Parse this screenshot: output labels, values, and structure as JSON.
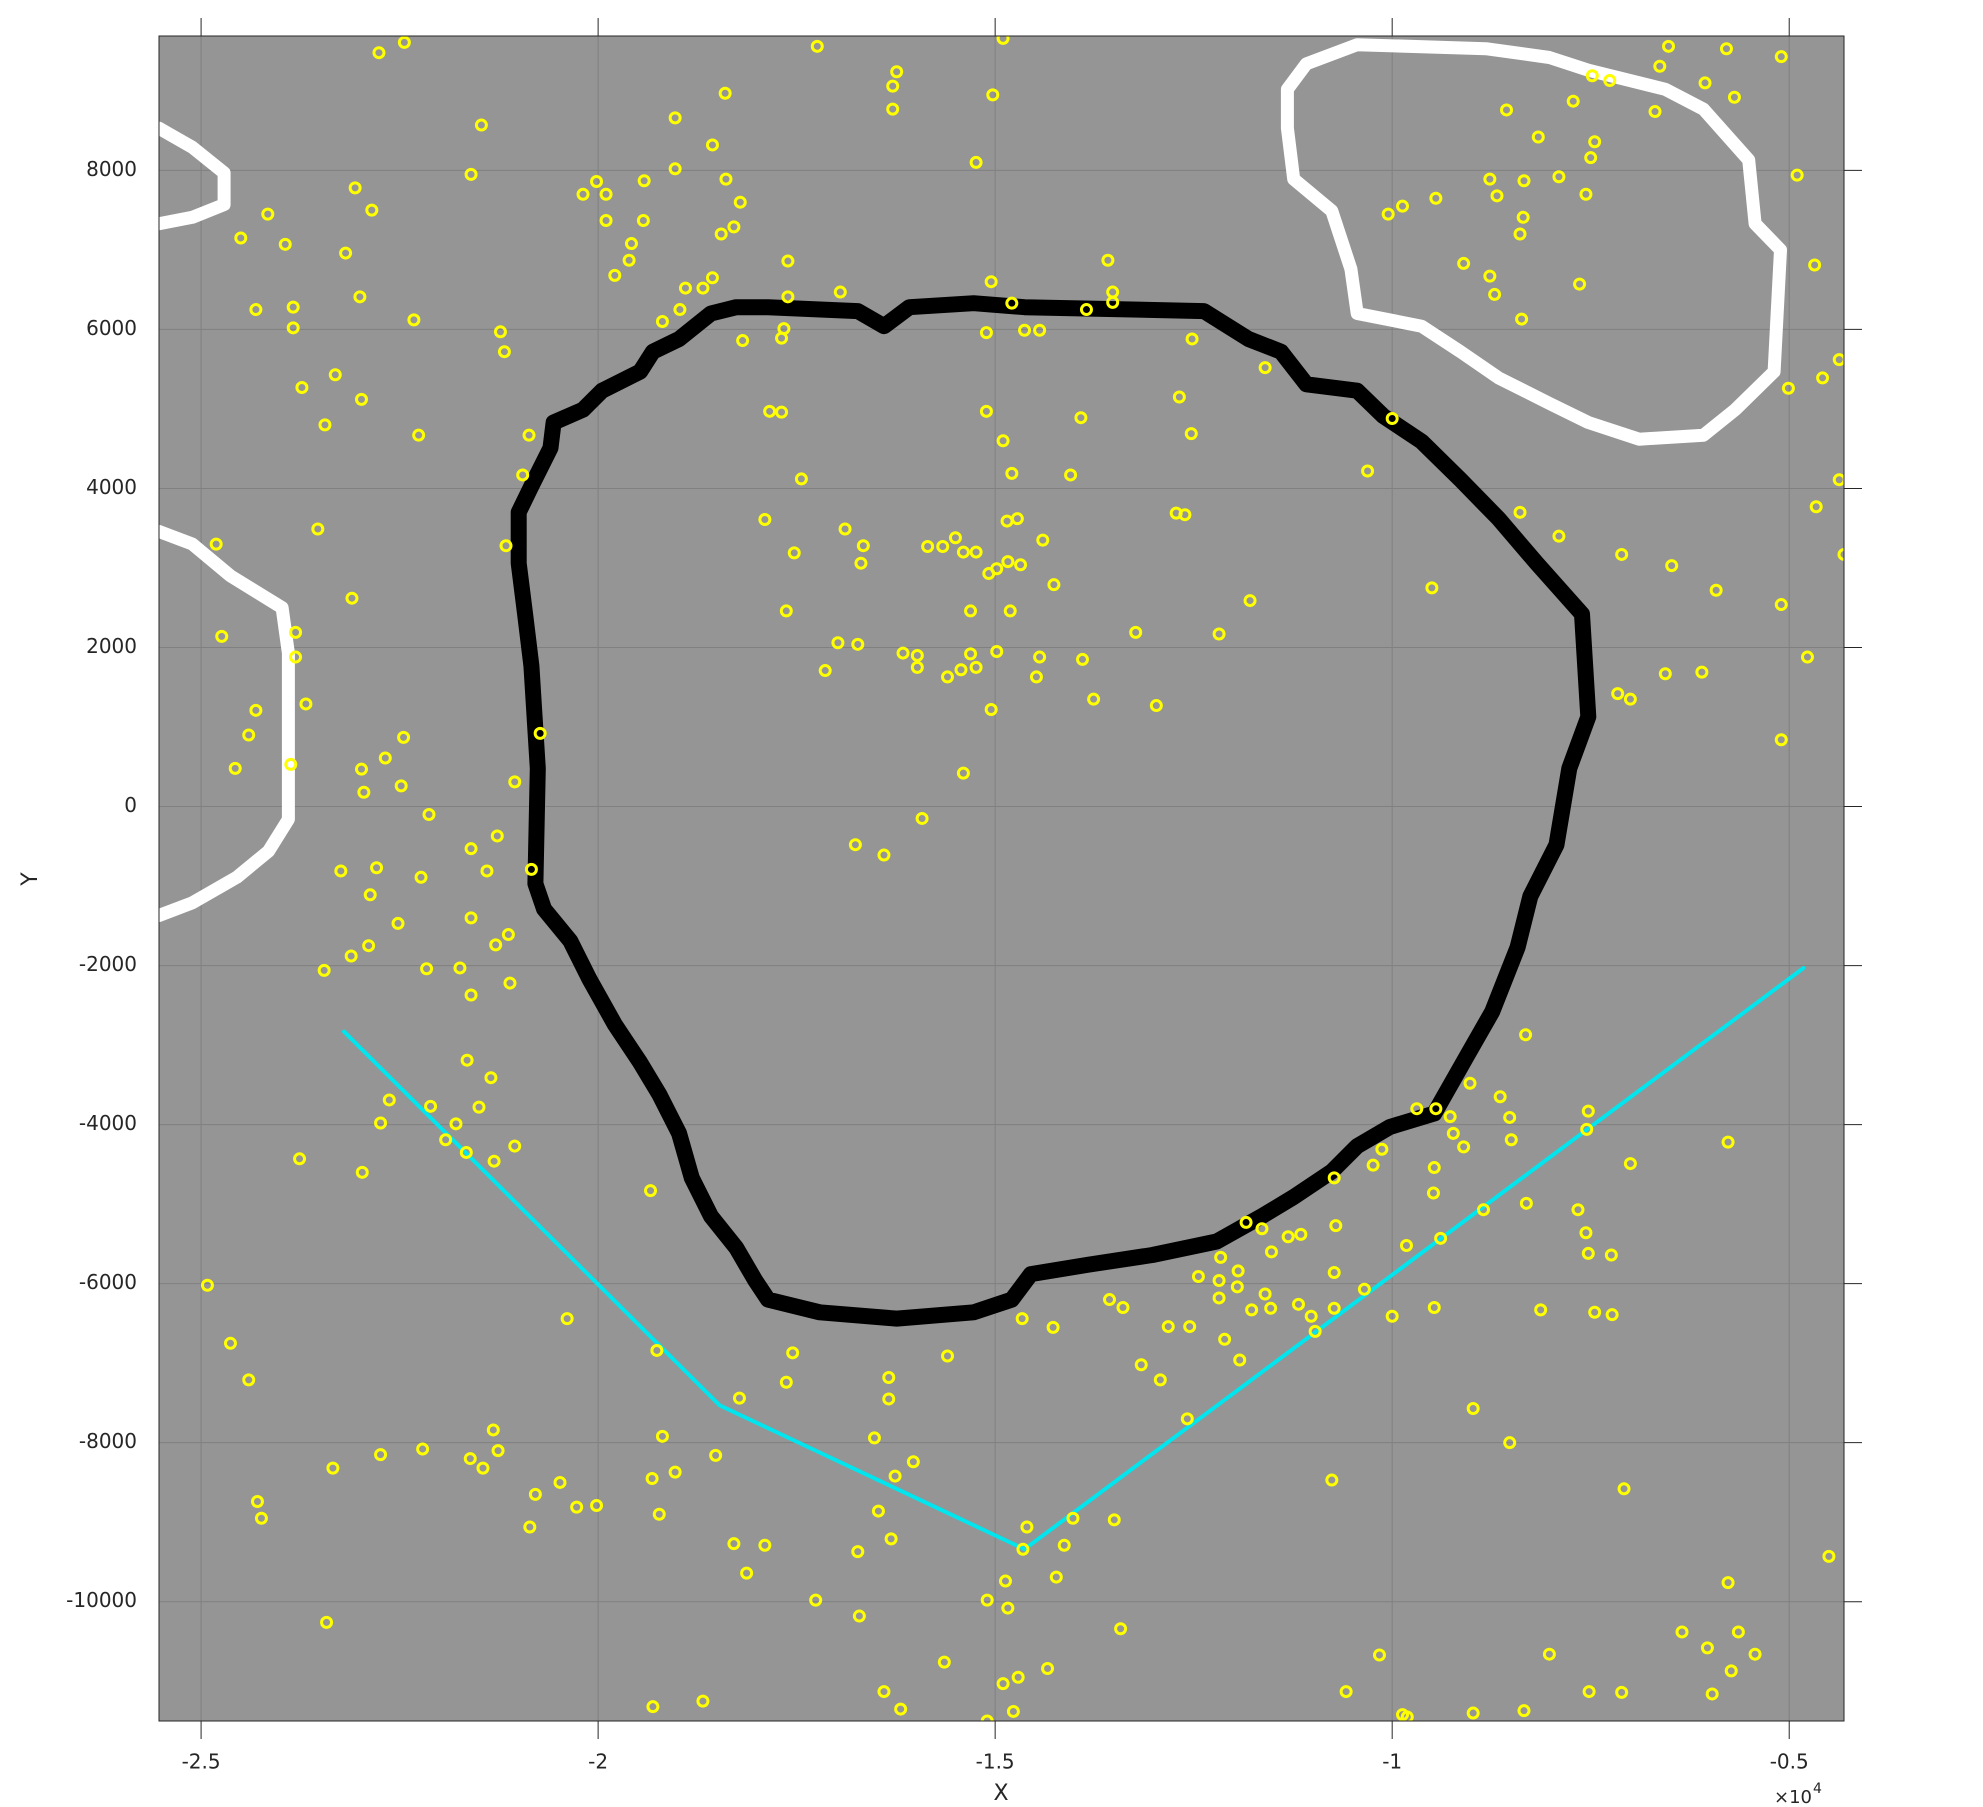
{
  "chart_data": {
    "type": "scatter",
    "xlabel": "X",
    "ylabel": "Y",
    "x_multiplier": {
      "base": "×10",
      "exponent": "4"
    },
    "xlim": [
      -25530,
      -4310
    ],
    "ylim": [
      -11500,
      9690
    ],
    "xticks": [
      {
        "value": -25000,
        "label": "-2.5"
      },
      {
        "value": -20000,
        "label": "-2"
      },
      {
        "value": -15000,
        "label": "-1.5"
      },
      {
        "value": -10000,
        "label": "-1"
      },
      {
        "value": -5000,
        "label": "-0.5"
      }
    ],
    "yticks": [
      8000,
      6000,
      4000,
      2000,
      0,
      -2000,
      -4000,
      -6000,
      -8000,
      -10000
    ],
    "grid": true,
    "background": "#959595",
    "series": [
      {
        "mode": "lines",
        "color": "#ffffff",
        "line_width": 13,
        "x": [
          -25530,
          -25110,
          -24710,
          -24710,
          -25110,
          -25530
        ],
        "y": [
          8530,
          8290,
          7970,
          7570,
          7410,
          7330
        ]
      },
      {
        "mode": "lines",
        "color": "#ffffff",
        "line_width": 13,
        "x": [
          -25530,
          -25110,
          -24630,
          -23980,
          -23900,
          -23900,
          -24150,
          -24550,
          -25110,
          -25530
        ],
        "y": [
          3460,
          3300,
          2900,
          2500,
          1930,
          -160,
          -560,
          -890,
          -1210,
          -1370
        ]
      },
      {
        "mode": "lines",
        "color": "#ffffff",
        "line_width": 13,
        "x": [
          -11320,
          -11080,
          -10440,
          -8820,
          -8020,
          -7530,
          -6560,
          -6080,
          -5510,
          -5430,
          -5110,
          -5190,
          -5680,
          -6080,
          -6890,
          -7530,
          -8020,
          -8660,
          -9140,
          -9630,
          -10440,
          -10520,
          -10760,
          -11240,
          -11320,
          -11320
        ],
        "y": [
          9020,
          9340,
          9580,
          9530,
          9420,
          9260,
          9020,
          8770,
          8130,
          7330,
          7000,
          5470,
          4990,
          4670,
          4620,
          4830,
          5070,
          5390,
          5720,
          6040,
          6200,
          6760,
          7490,
          7890,
          8530,
          9020
        ]
      },
      {
        "mode": "lines",
        "color": "#000000",
        "line_width": 16,
        "x": [
          -21000,
          -20840,
          -20600,
          -20560,
          -20190,
          -19950,
          -19470,
          -19310,
          -18980,
          -18580,
          -18260,
          -17860,
          -16730,
          -16400,
          -16080,
          -15270,
          -14630,
          -12370,
          -11810,
          -11400,
          -11080,
          -10440,
          -10110,
          -9630,
          -9140,
          -8660,
          -8180,
          -7610,
          -7530,
          -7770,
          -7930,
          -8260,
          -8420,
          -8740,
          -9060,
          -9470,
          -10030,
          -10440,
          -10760,
          -11240,
          -11640,
          -12210,
          -13020,
          -13820,
          -14550,
          -14790,
          -15270,
          -16240,
          -17210,
          -17860,
          -18020,
          -18260,
          -18580,
          -18820,
          -18980,
          -19230,
          -19470,
          -19790,
          -20110,
          -20350,
          -20680,
          -20790,
          -20760,
          -20840,
          -20920,
          -21000,
          -21000
        ],
        "y": [
          3700,
          4030,
          4510,
          4830,
          4990,
          5230,
          5470,
          5720,
          5880,
          6200,
          6280,
          6280,
          6230,
          6040,
          6280,
          6330,
          6280,
          6230,
          5880,
          5720,
          5310,
          5230,
          4910,
          4590,
          4110,
          3620,
          3060,
          2420,
          1130,
          480,
          -480,
          -1130,
          -1770,
          -2580,
          -3140,
          -3860,
          -4030,
          -4270,
          -4590,
          -4910,
          -5150,
          -5470,
          -5640,
          -5760,
          -5880,
          -6200,
          -6360,
          -6440,
          -6360,
          -6200,
          -5960,
          -5550,
          -5150,
          -4670,
          -4110,
          -3620,
          -3220,
          -2740,
          -2170,
          -1690,
          -1290,
          -970,
          480,
          1770,
          2420,
          3060,
          3700
        ]
      },
      {
        "mode": "lines",
        "color": "#00e5ee",
        "line_width": 4,
        "x": [
          -23200,
          -18470,
          -14630,
          -4820
        ],
        "y": [
          -2830,
          -7530,
          -9340,
          -2030
        ]
      },
      {
        "mode": "markers",
        "color": "#ffff00",
        "x": [
          -14900,
          -17240,
          -22760,
          -22440,
          -16240,
          -16290,
          -16290,
          -15030,
          -18400,
          -21470,
          -19030,
          -18560,
          -15240,
          -21600,
          -23060,
          -24160,
          -24500,
          -23940,
          -22850,
          -20020,
          -19900,
          -20190,
          -19900,
          -19430,
          -19420,
          -19030,
          -18390,
          -18210,
          -18290,
          -18450,
          -19580,
          -19610,
          -19790,
          -23180,
          -23000,
          -24310,
          -23840,
          -23840,
          -22320,
          -21230,
          -21180,
          -19190,
          -18970,
          -18900,
          -18680,
          -18560,
          -18180,
          -17610,
          -17610,
          -17660,
          -17690,
          -16950,
          -23310,
          -23730,
          -22980,
          -23440,
          -22260,
          -20870,
          -20950,
          -17840,
          -17690,
          -17440,
          -17900,
          -23530,
          -24810,
          -21160,
          -17530,
          -16890,
          -16660,
          -16690,
          -17630,
          -23100,
          -24740,
          -23810,
          -23810,
          -23680,
          -24310,
          -24400,
          -24570,
          -23870,
          -22980,
          -22950,
          -22680,
          -22450,
          -22480,
          -22130,
          -20730,
          -21050,
          -21600,
          -21270,
          -21400,
          -20840,
          -23240,
          -22790,
          -22870,
          -22230,
          -22520,
          -21600,
          -22890,
          -23110,
          -21130,
          -21290,
          -23450,
          -22160,
          -21740,
          -21110,
          -21600,
          -21650,
          -21350,
          -22630,
          -22110,
          -21500,
          -22740,
          -21790,
          -21920,
          -21660,
          -21050,
          -21310,
          -23760,
          -22970,
          -19340,
          -24920,
          -20390,
          -24630,
          -24400,
          -19260,
          -17550,
          -17630,
          -18220,
          -16340,
          -16340,
          -15600,
          -21320,
          -21260,
          -22210,
          -22740,
          -21610,
          -21450,
          -23340,
          -19190,
          -19030,
          -18520,
          -19320,
          -20480,
          -20790,
          -20270,
          -20020,
          -24290,
          -24240,
          -20860,
          -19230,
          -18290,
          -17900,
          -18130,
          -16520,
          -16260,
          -16030,
          -16470,
          -16310,
          -16730,
          -17260,
          -16710,
          -23420,
          -15640,
          -16400,
          -16190,
          -19310,
          -18680,
          -15100,
          -14870,
          -14840,
          -14600,
          -14650,
          -14020,
          -14130,
          -14230,
          -13500,
          -13420,
          -14710,
          -14900,
          -14340,
          -14770,
          -15100,
          -14660,
          -14270,
          -13560,
          -13390,
          -13160,
          -12920,
          -12820,
          -12550,
          -12440,
          -12160,
          -12180,
          -12180,
          -11940,
          -11950,
          -12110,
          -11920,
          -12580,
          -11770,
          -11600,
          -11530,
          -11840,
          -11640,
          -11520,
          -11310,
          -11150,
          -11180,
          -11020,
          -10970,
          -10730,
          -10730,
          -10710,
          -10730,
          -10760,
          -10580,
          -10160,
          -10350,
          -10000,
          -10240,
          -10130,
          -9870,
          -9820,
          -9690,
          -9450,
          -9480,
          -9470,
          -9470,
          -9390,
          -9270,
          -9230,
          -9100,
          -9020,
          -8850,
          -8980,
          -8980,
          -8640,
          -8520,
          -8500,
          -8310,
          -8320,
          -8520,
          -8130,
          -8020,
          -7660,
          -7560,
          -7530,
          -7530,
          -7550,
          -7450,
          -7230,
          -7240,
          -7000,
          -7080,
          -7520,
          -7110,
          -5770,
          -5770,
          -6350,
          -5640,
          -6030,
          -5730,
          -5430,
          -5970,
          -4500,
          -9810,
          -8340,
          -15050,
          -14790,
          -15110,
          -14630,
          -14440,
          -13850,
          -13580,
          -13520,
          -13520,
          -12520,
          -12680,
          -12530,
          -13920,
          -15110,
          -14900,
          -14790,
          -14050,
          -12720,
          -12610,
          -14720,
          -14850,
          -14400,
          -15500,
          -15850,
          -15660,
          -15400,
          -15240,
          -14680,
          -14840,
          -14980,
          -15080,
          -14260,
          -14810,
          -15310,
          -16980,
          -16730,
          -17140,
          -16160,
          -15980,
          -15980,
          -15600,
          -15430,
          -15310,
          -15240,
          -14980,
          -14440,
          -14480,
          -13900,
          -15050,
          -13760,
          -13230,
          -12970,
          -12180,
          -11790,
          -15400,
          -15920,
          -16760,
          -16400,
          -11600,
          -10000,
          -10310,
          -8390,
          -7900,
          -9500,
          -10050,
          -9870,
          -9450,
          -9100,
          -8770,
          -8710,
          -8770,
          -8680,
          -8560,
          -8340,
          -8350,
          -8390,
          -8370,
          -8160,
          -7900,
          -7720,
          -7480,
          -7260,
          -7450,
          -7500,
          -7560,
          -7640,
          -6690,
          -6630,
          -6520,
          -6060,
          -5790,
          -5690,
          -5100,
          -4900,
          -4680,
          -4370,
          -4580,
          -5010,
          -4370,
          -4660,
          -4310,
          -6480,
          -7110,
          -5920,
          -5100,
          -4770,
          -6560,
          -6100,
          -7160,
          -7000,
          -5100
        ],
        "y": [
          9660,
          9560,
          9480,
          9610,
          9240,
          9060,
          8770,
          8950,
          8970,
          8570,
          8660,
          8320,
          8100,
          7950,
          7780,
          7450,
          7150,
          7070,
          7500,
          7860,
          7700,
          7700,
          7370,
          7370,
          7870,
          8020,
          7890,
          7600,
          7290,
          7200,
          7080,
          6870,
          6680,
          6960,
          6410,
          6250,
          6280,
          6020,
          6120,
          5970,
          5720,
          6100,
          6250,
          6520,
          6520,
          6650,
          5860,
          6860,
          6410,
          6010,
          5890,
          6470,
          5430,
          5270,
          5120,
          4800,
          4670,
          4670,
          4170,
          4970,
          4960,
          4120,
          3610,
          3490,
          3300,
          3280,
          3190,
          3490,
          3280,
          3060,
          2460,
          2620,
          2140,
          2190,
          1880,
          1290,
          1210,
          900,
          480,
          530,
          470,
          180,
          610,
          870,
          260,
          -100,
          920,
          310,
          -530,
          -370,
          -810,
          -790,
          -810,
          -770,
          -1110,
          -890,
          -1470,
          -1400,
          -1750,
          -1880,
          -1610,
          -1740,
          -2060,
          -2040,
          -2030,
          -2220,
          -2370,
          -3190,
          -3410,
          -3690,
          -3770,
          -3780,
          -3980,
          -3990,
          -4190,
          -4350,
          -4270,
          -4460,
          -4430,
          -4600,
          -4830,
          -6020,
          -6440,
          -6750,
          -7210,
          -6840,
          -6870,
          -7240,
          -7440,
          -7180,
          -7450,
          -6910,
          -7840,
          -8100,
          -8080,
          -8150,
          -8200,
          -8320,
          -8320,
          -7920,
          -8370,
          -8160,
          -8450,
          -8500,
          -8650,
          -8810,
          -8790,
          -8740,
          -8950,
          -9060,
          -8900,
          -9270,
          -9290,
          -9640,
          -7940,
          -8420,
          -8240,
          -8860,
          -9210,
          -9370,
          -9980,
          -10180,
          -10260,
          -10760,
          -11130,
          -11350,
          -11320,
          -11250,
          -9980,
          -9740,
          -10080,
          -9060,
          -9340,
          -8950,
          -9290,
          -9690,
          -8970,
          -10340,
          -10950,
          -11030,
          -10840,
          -11380,
          -11500,
          -6440,
          -6550,
          -6200,
          -6300,
          -7020,
          -7210,
          -6540,
          -6540,
          -5910,
          -5670,
          -5960,
          -6180,
          -5840,
          -6040,
          -6700,
          -6960,
          -7700,
          -6330,
          -6130,
          -6310,
          -5230,
          -5310,
          -5600,
          -5410,
          -5380,
          -6260,
          -6410,
          -6600,
          -6310,
          -5860,
          -5270,
          -4670,
          -8470,
          -11130,
          -10670,
          -6070,
          -6410,
          -4510,
          -4310,
          -11420,
          -5520,
          -3800,
          -3800,
          -4860,
          -4540,
          -6300,
          -5430,
          -3900,
          -4110,
          -4280,
          -3480,
          -5070,
          -7570,
          -11400,
          -3650,
          -3910,
          -4190,
          -4990,
          -2870,
          -8000,
          -6330,
          -10660,
          -5070,
          -5360,
          -5620,
          -3830,
          -4060,
          -6360,
          -6390,
          -5640,
          -4490,
          -8580,
          -11130,
          -11140,
          -4220,
          -9760,
          -10380,
          -10380,
          -10580,
          -10870,
          -10660,
          -11160,
          -9430,
          -11450,
          -11370,
          6600,
          6330,
          5960,
          5990,
          5990,
          6250,
          6870,
          6470,
          6340,
          5880,
          5150,
          4690,
          4890,
          4970,
          4600,
          4190,
          4170,
          3690,
          3670,
          3620,
          3590,
          3350,
          3380,
          3270,
          3270,
          3200,
          3200,
          3040,
          3080,
          2990,
          2930,
          2790,
          2460,
          2460,
          2060,
          2040,
          1710,
          1930,
          1900,
          1750,
          1630,
          1720,
          1920,
          1750,
          1950,
          1880,
          1630,
          1850,
          1220,
          1350,
          2190,
          1270,
          2170,
          2590,
          420,
          -150,
          -480,
          -610,
          5520,
          4880,
          4220,
          3700,
          3400,
          2750,
          7450,
          7550,
          7650,
          6830,
          6670,
          6440,
          7890,
          7680,
          8760,
          7870,
          7410,
          7200,
          6130,
          8420,
          7920,
          8870,
          9190,
          9130,
          8360,
          8160,
          7700,
          6570,
          8740,
          9310,
          9560,
          9100,
          9530,
          8920,
          9430,
          7940,
          6810,
          5620,
          5390,
          5260,
          4110,
          3770,
          3170,
          3030,
          3170,
          2720,
          2540,
          1880,
          1670,
          1690,
          1420,
          1350,
          840
        ]
      }
    ]
  }
}
